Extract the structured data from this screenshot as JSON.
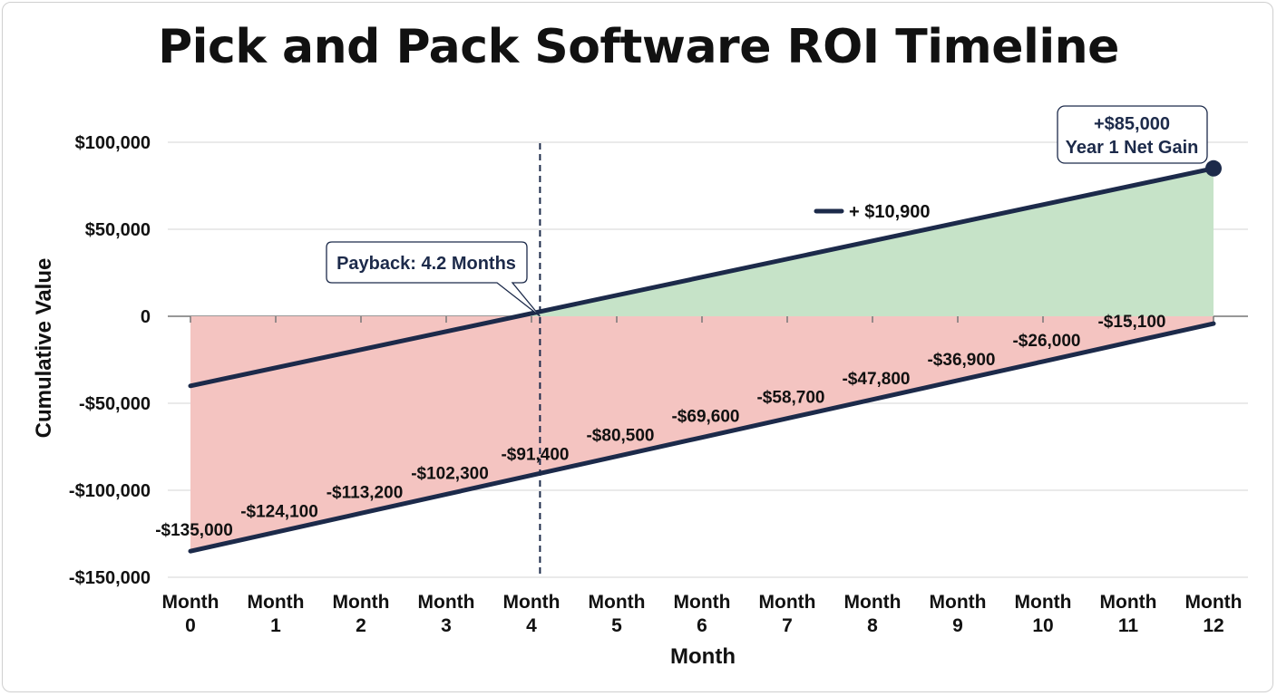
{
  "title": "Pick and Pack Software ROI Timeline",
  "chart_data": {
    "type": "area",
    "title": "Pick and Pack Software ROI Timeline",
    "xlabel": "Month",
    "ylabel": "Cumulative Value",
    "categories": [
      "Month 0",
      "Month 1",
      "Month 2",
      "Month 3",
      "Month 4",
      "Month 5",
      "Month 6",
      "Month 7",
      "Month 8",
      "Month 9",
      "Month 10",
      "Month 11",
      "Month 12"
    ],
    "x": [
      0,
      1,
      2,
      3,
      4,
      5,
      6,
      7,
      8,
      9,
      10,
      11,
      12
    ],
    "ylim": [
      -150000,
      100000
    ],
    "yticks": [
      100000,
      50000,
      0,
      -50000,
      -100000,
      -150000
    ],
    "ytick_labels": [
      "$100,000",
      "$50,000",
      "0",
      "-$50,000",
      "-$100,000",
      "-$150,000"
    ],
    "grid": true,
    "series": [
      {
        "values": [
          -135000,
          -124100,
          -113200,
          -102300,
          -91400,
          -80500,
          -69600,
          -58700,
          -47800,
          -36900,
          -26000,
          -15100,
          -4200
        ],
        "data_labels": [
          "-$135,000",
          "-$124,100",
          "-$113,200",
          "-$102,300",
          "-$91,400",
          "-$80,500",
          "-$69,600",
          "-$58,700",
          "-$47,800",
          "-$36,900",
          "-$26,000",
          "-$15,100"
        ],
        "color": "#1c2a4a",
        "fill": "#f4c4c1"
      },
      {
        "x": [
          0,
          12
        ],
        "values": [
          -40000,
          85000
        ],
        "color": "#1c2a4a",
        "fill": "#c6e3c8"
      }
    ],
    "legend": {
      "label": "+ $10,900",
      "placement": "top-center"
    },
    "annotations": {
      "payback": {
        "x": 4.1,
        "label": "Payback: 4.2 Months"
      },
      "year_gain": {
        "line1": "+$85,000",
        "line2": "Year 1 Net Gain"
      }
    }
  }
}
